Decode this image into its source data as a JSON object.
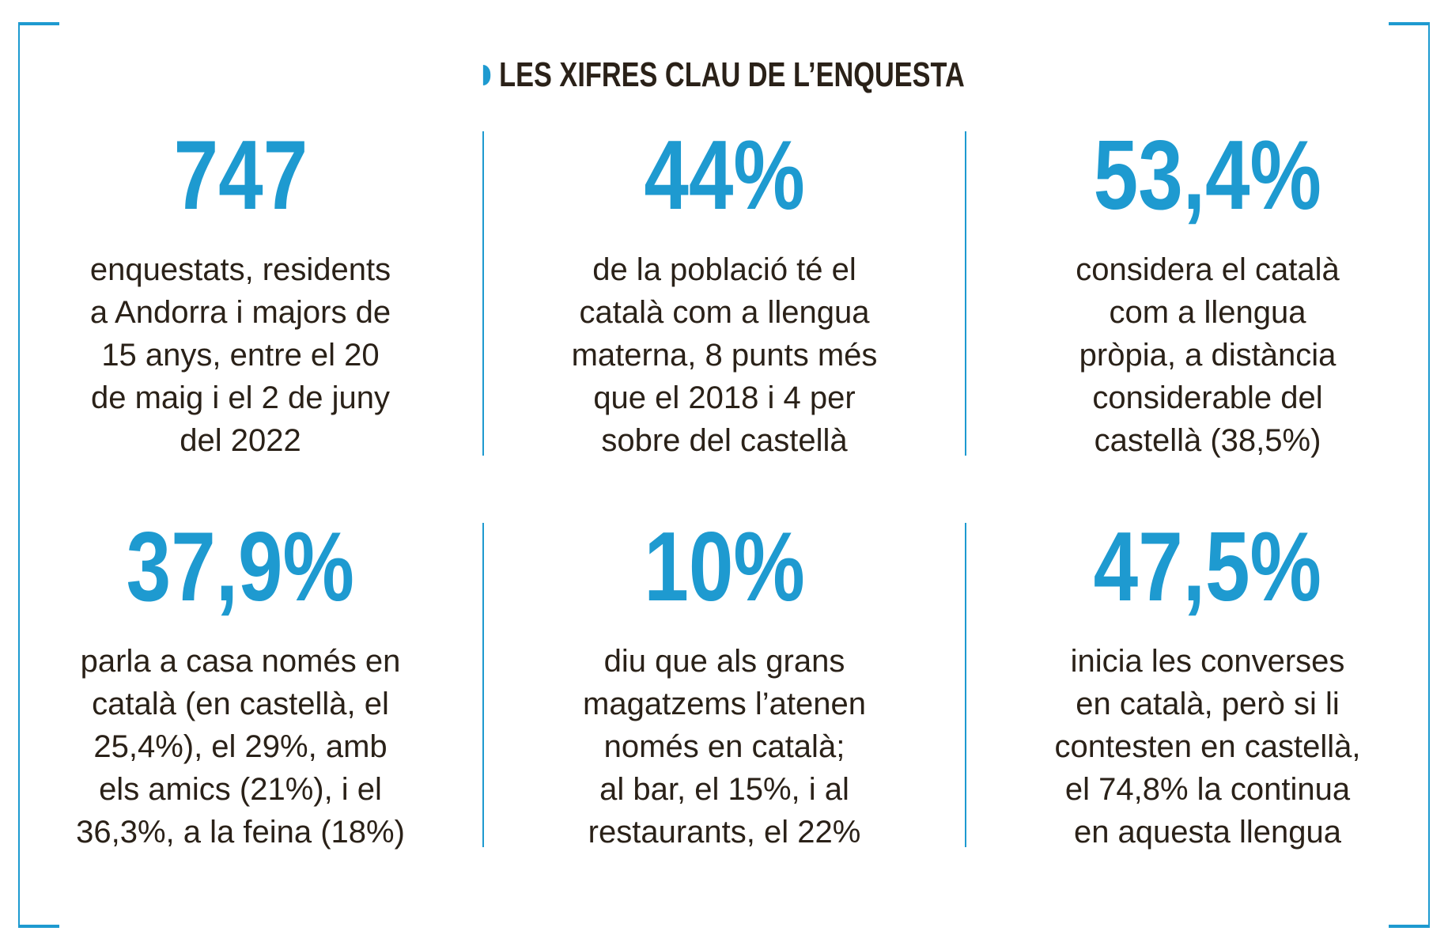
{
  "title": "LES XIFRES CLAU DE L’ENQUESTA",
  "accent_color": "#1e9ad0",
  "stats": [
    {
      "value": "747",
      "lines": [
        "enquestats, residents",
        "a Andorra i majors de",
        "15 anys, entre el 20",
        "de maig i el 2 de juny",
        "del 2022"
      ]
    },
    {
      "value": "44%",
      "lines": [
        "de la població té el",
        "català com a llengua",
        "materna, 8 punts més",
        "que el 2018 i 4 per",
        "sobre del castellà"
      ]
    },
    {
      "value": "53,4%",
      "lines": [
        "considera el català",
        "com a llengua",
        "pròpia, a distància",
        "considerable del",
        "castellà (38,5%)"
      ]
    },
    {
      "value": "37,9%",
      "lines": [
        "parla a casa només en",
        "català (en castellà, el",
        "25,4%), el 29%, amb",
        "els amics (21%), i el",
        "36,3%, a la feina (18%)"
      ]
    },
    {
      "value": "10%",
      "lines": [
        "diu que als grans",
        "magatzems l’atenen",
        "només en català;",
        "al bar, el 15%, i al",
        "restaurants, el 22%"
      ]
    },
    {
      "value": "47,5%",
      "lines": [
        "inicia les converses",
        "en català, però si li",
        "contesten en castellà,",
        "el 74,8% la continua",
        "en aquesta llengua"
      ]
    }
  ]
}
